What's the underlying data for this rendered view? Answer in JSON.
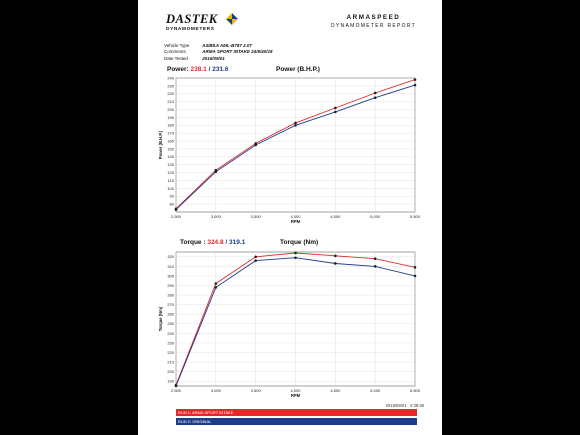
{
  "brand": {
    "name": "DASTEK",
    "sub": "DYNAMOMETERS"
  },
  "report": {
    "title": "ARMASPEED",
    "subtitle": "DYNAMOMETER REPORT"
  },
  "info": [
    {
      "label": "Vehicle Type",
      "value": "A4/B8.5      AML-B787 2.0T"
    },
    {
      "label": "Comments",
      "value": "ARMA SPORT INTAKE 24/6/40/18"
    },
    {
      "label": "Date Tested",
      "value": "2015/09/01"
    }
  ],
  "power_header": {
    "label": "Power:",
    "v1": "238.1",
    "sep": "/",
    "v2": "231.6",
    "title": "Power (B.H.P.)"
  },
  "torque_header": {
    "label": "Torque :",
    "v1": "324.8",
    "sep": "/",
    "v2": "319.1",
    "title": "Torque (Nm)"
  },
  "timestamp": "2015/09/01    4:38:48",
  "legend": [
    {
      "name": "RUN 1: ARMA SPORT INTAKE",
      "color": "#e02a2a"
    },
    {
      "name": "RUN 2: ORIGINAL",
      "color": "#1e3c8c"
    }
  ],
  "chart_data": [
    {
      "type": "line",
      "title": "Power (B.H.P.)",
      "xlabel": "RPM",
      "ylabel": "Power (B.H.P.)",
      "xlim": [
        2500,
        5500
      ],
      "ylim": [
        70,
        240
      ],
      "xticks": [
        2500,
        3000,
        3500,
        4000,
        4500,
        5000,
        5500
      ],
      "xtick_labels": [
        "2,500",
        "3,000",
        "3,500",
        "4,000",
        "4,500",
        "5,000",
        "5,500"
      ],
      "yticks": [
        80,
        90,
        100,
        110,
        120,
        130,
        140,
        150,
        160,
        170,
        180,
        190,
        200,
        210,
        220,
        230,
        240
      ],
      "grid": true,
      "x": [
        2500,
        3000,
        3500,
        4000,
        4500,
        5000,
        5500
      ],
      "series": [
        {
          "name": "RUN 1: ARMA SPORT INTAKE",
          "color": "#e02a2a",
          "values": [
            74,
            123,
            157,
            183,
            202,
            221,
            238
          ]
        },
        {
          "name": "RUN 2: ORIGINAL",
          "color": "#1e3c8c",
          "values": [
            73,
            121,
            155,
            180,
            197,
            215,
            231
          ]
        }
      ]
    },
    {
      "type": "line",
      "title": "Torque (Nm)",
      "xlabel": "RPM",
      "ylabel": "Torque (Nm)",
      "xlim": [
        2500,
        5500
      ],
      "ylim": [
        185,
        325
      ],
      "xticks": [
        2500,
        3000,
        3500,
        4000,
        4500,
        5000,
        5500
      ],
      "xtick_labels": [
        "2,500",
        "3,000",
        "3,500",
        "4,000",
        "4,500",
        "5,000",
        "5,500"
      ],
      "yticks": [
        190,
        200,
        210,
        220,
        230,
        240,
        250,
        260,
        270,
        280,
        290,
        300,
        310,
        320
      ],
      "grid": true,
      "x": [
        2500,
        3000,
        3500,
        4000,
        4500,
        5000,
        5500
      ],
      "series": [
        {
          "name": "RUN 1: ARMA SPORT INTAKE",
          "color": "#e02a2a",
          "values": [
            186,
            292,
            320,
            324,
            321,
            318,
            309
          ]
        },
        {
          "name": "RUN 2: ORIGINAL",
          "color": "#1e3c8c",
          "values": [
            185,
            288,
            316,
            319,
            313,
            310,
            300
          ]
        }
      ]
    }
  ]
}
